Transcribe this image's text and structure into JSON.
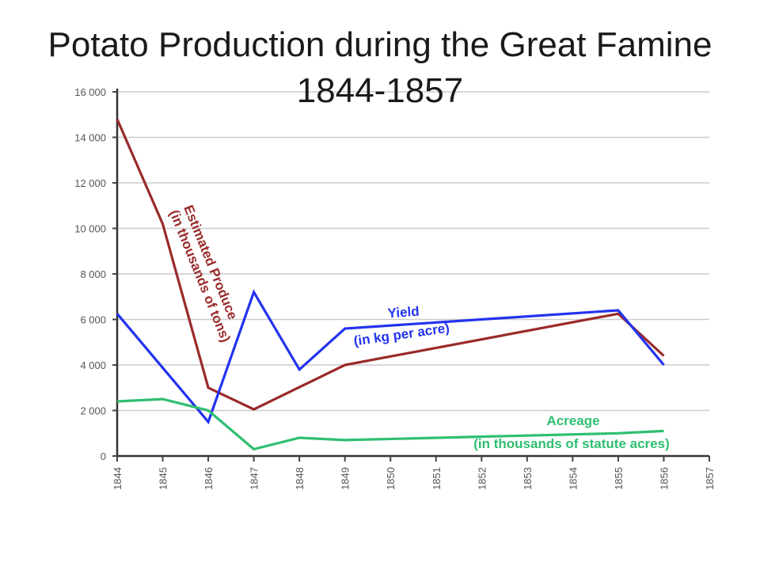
{
  "slide": {
    "title": "Potato Production during the Great Famine 1844-1857"
  },
  "chart_data": {
    "type": "line",
    "title": "",
    "xlabel": "",
    "ylabel": "",
    "x_ticks": [
      "1844",
      "1845",
      "1846",
      "1847",
      "1848",
      "1849",
      "1850",
      "1851",
      "1852",
      "1853",
      "1854",
      "1855",
      "1856",
      "1857"
    ],
    "y_ticks": [
      "0",
      "2 000",
      "4 000",
      "6 000",
      "8 000",
      "10 000",
      "12 000",
      "14 000",
      "16 000"
    ],
    "xlim": [
      1844,
      1857
    ],
    "ylim": [
      0,
      16000
    ],
    "grid": "horizontal",
    "series": [
      {
        "name": "Estimated Produce",
        "annotation": [
          "Estimated Produce",
          "(in thousands of tons)"
        ],
        "color": "#9a2a2a",
        "x": [
          1844,
          1845,
          1846,
          1847,
          1849,
          1855,
          1856
        ],
        "y": [
          14800,
          10200,
          3000,
          2050,
          4000,
          6250,
          4400
        ]
      },
      {
        "name": "Yield",
        "annotation": [
          "Yield",
          "(in kg per acre)"
        ],
        "color": "#2233ee",
        "x": [
          1844,
          1846,
          1847,
          1848,
          1849,
          1855,
          1856
        ],
        "y": [
          6250,
          1500,
          7200,
          3800,
          5600,
          6400,
          4000
        ]
      },
      {
        "name": "Acreage",
        "annotation": [
          "Acreage",
          "(in thousands of statute acres)"
        ],
        "color": "#2fbf71",
        "x": [
          1844,
          1845,
          1846,
          1847,
          1848,
          1849,
          1855,
          1856
        ],
        "y": [
          2400,
          2500,
          2000,
          300,
          800,
          700,
          1000,
          1100
        ]
      }
    ]
  }
}
